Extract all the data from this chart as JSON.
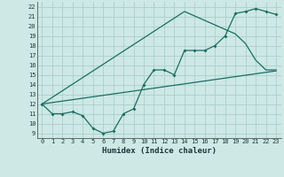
{
  "xlabel": "Humidex (Indice chaleur)",
  "xlim": [
    -0.5,
    23.5
  ],
  "ylim": [
    8.5,
    22.5
  ],
  "xticks": [
    0,
    1,
    2,
    3,
    4,
    5,
    6,
    7,
    8,
    9,
    10,
    11,
    12,
    13,
    14,
    15,
    16,
    17,
    18,
    19,
    20,
    21,
    22,
    23
  ],
  "yticks": [
    9,
    10,
    11,
    12,
    13,
    14,
    15,
    16,
    17,
    18,
    19,
    20,
    21,
    22
  ],
  "bg_color": "#cde8e5",
  "line_color": "#1a6e62",
  "grid_color": "#aacfcc",
  "line1_x": [
    0,
    1,
    2,
    3,
    4,
    5,
    6,
    7,
    8,
    9,
    10,
    11,
    12,
    13,
    14,
    15,
    16,
    17,
    18,
    19,
    20,
    21,
    22,
    23
  ],
  "line1_y": [
    12.0,
    11.0,
    11.0,
    11.2,
    10.8,
    9.5,
    9.0,
    9.2,
    11.0,
    11.5,
    14.0,
    15.5,
    15.5,
    15.0,
    17.5,
    17.5,
    17.5,
    18.0,
    19.0,
    21.3,
    21.5,
    21.8,
    21.5,
    21.2
  ],
  "line2_x": [
    0,
    23
  ],
  "line2_y": [
    12.0,
    15.4
  ],
  "line3_x": [
    0,
    14,
    19,
    20,
    21,
    22,
    23
  ],
  "line3_y": [
    12.0,
    21.5,
    19.2,
    18.2,
    16.5,
    15.5,
    15.5
  ]
}
